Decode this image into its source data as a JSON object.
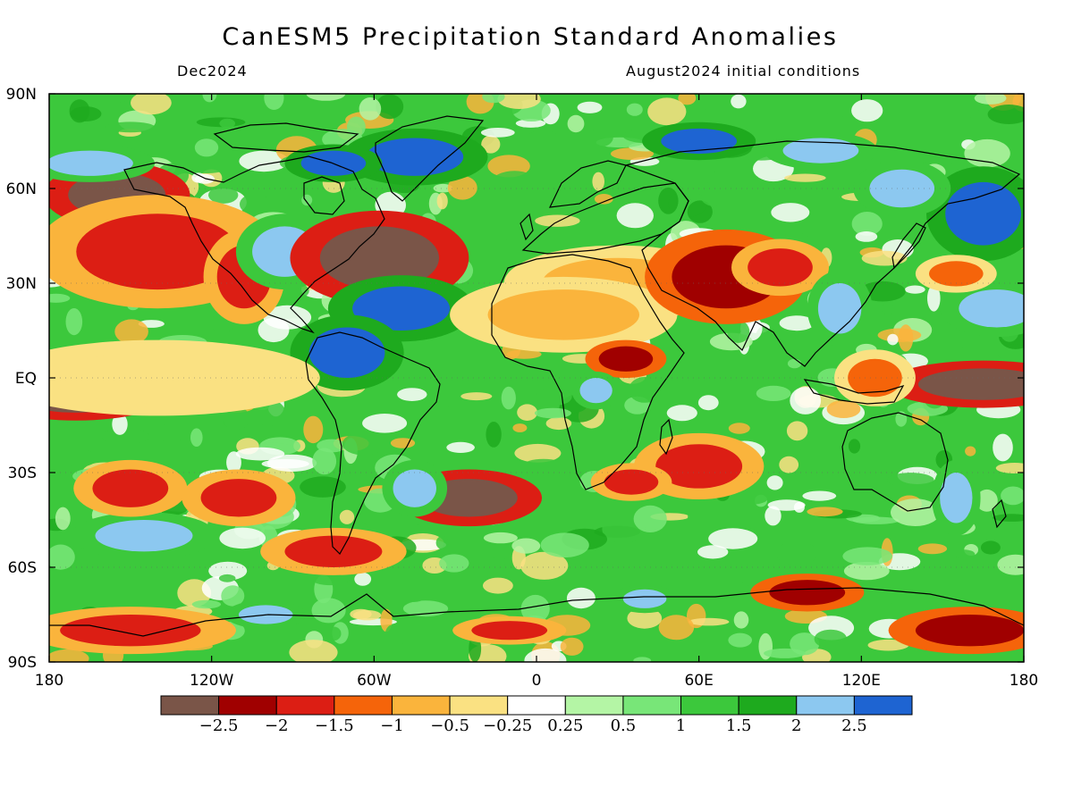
{
  "title": "CanESM5 Precipitation Standard Anomalies",
  "valid_month": "Dec2024",
  "initial_conditions": "August2024 initial conditions",
  "lat_labels": [
    {
      "text": "90N",
      "lat": 90
    },
    {
      "text": "60N",
      "lat": 60
    },
    {
      "text": "30N",
      "lat": 30
    },
    {
      "text": "EQ",
      "lat": 0
    },
    {
      "text": "30S",
      "lat": -30
    },
    {
      "text": "60S",
      "lat": -60
    },
    {
      "text": "90S",
      "lat": -90
    }
  ],
  "lon_labels": [
    {
      "text": "180",
      "lon": -180
    },
    {
      "text": "120W",
      "lon": -120
    },
    {
      "text": "60W",
      "lon": -60
    },
    {
      "text": "0",
      "lon": 0
    },
    {
      "text": "60E",
      "lon": 60
    },
    {
      "text": "120E",
      "lon": 120
    },
    {
      "text": "180",
      "lon": 180
    }
  ],
  "colorbar": {
    "colors": [
      "#7a5548",
      "#a00000",
      "#dc1e14",
      "#f5640a",
      "#fab43c",
      "#fae182",
      "#ffffff",
      "#b4f5a5",
      "#78e678",
      "#3cc83c",
      "#1eaa1e",
      "#8cc8f0",
      "#1e64d2"
    ],
    "labels": [
      "−2.5",
      "−2",
      "−1.5",
      "−1",
      "−0.5",
      "−0.25",
      "0.25",
      "0.5",
      "1",
      "1.5",
      "2",
      "2.5"
    ]
  },
  "anomaly_features": [
    {
      "lon": -155,
      "lat": 58,
      "rx": 18,
      "ry": 7,
      "value": -2.7
    },
    {
      "lon": -140,
      "lat": 40,
      "rx": 30,
      "ry": 12,
      "value": -1.6
    },
    {
      "lon": -108,
      "lat": 32,
      "rx": 10,
      "ry": 10,
      "value": -1.8
    },
    {
      "lon": -93,
      "lat": 40,
      "rx": 12,
      "ry": 8,
      "value": 2.1
    },
    {
      "lon": -58,
      "lat": 38,
      "rx": 22,
      "ry": 10,
      "value": -2.6
    },
    {
      "lon": -50,
      "lat": 22,
      "rx": 18,
      "ry": 7,
      "value": 2.7
    },
    {
      "lon": -70,
      "lat": 8,
      "rx": 14,
      "ry": 8,
      "value": 2.6
    },
    {
      "lon": -45,
      "lat": 70,
      "rx": 18,
      "ry": 6,
      "value": 2.6
    },
    {
      "lon": -75,
      "lat": 68,
      "rx": 12,
      "ry": 4,
      "value": 2.6
    },
    {
      "lon": -165,
      "lat": 68,
      "rx": 16,
      "ry": 4,
      "value": 2.3
    },
    {
      "lon": -170,
      "lat": -6,
      "rx": 22,
      "ry": 5,
      "value": -2.7
    },
    {
      "lon": -140,
      "lat": 0,
      "rx": 40,
      "ry": 8,
      "value": -0.4
    },
    {
      "lon": -145,
      "lat": -50,
      "rx": 18,
      "ry": 5,
      "value": 2.3
    },
    {
      "lon": -150,
      "lat": -35,
      "rx": 14,
      "ry": 6,
      "value": -1.7
    },
    {
      "lon": -110,
      "lat": -38,
      "rx": 14,
      "ry": 6,
      "value": -1.8
    },
    {
      "lon": -25,
      "lat": -38,
      "rx": 18,
      "ry": 6,
      "value": -2.6
    },
    {
      "lon": -45,
      "lat": -35,
      "rx": 8,
      "ry": 6,
      "value": 2.3
    },
    {
      "lon": -75,
      "lat": -55,
      "rx": 18,
      "ry": 5,
      "value": -1.6
    },
    {
      "lon": 30,
      "lat": 30,
      "rx": 28,
      "ry": 8,
      "value": -0.9
    },
    {
      "lon": 10,
      "lat": 20,
      "rx": 28,
      "ry": 8,
      "value": -0.6
    },
    {
      "lon": 33,
      "lat": 6,
      "rx": 10,
      "ry": 4,
      "value": -2.1
    },
    {
      "lon": 22,
      "lat": -4,
      "rx": 6,
      "ry": 4,
      "value": 2.4
    },
    {
      "lon": 70,
      "lat": 32,
      "rx": 20,
      "ry": 10,
      "value": -2.2
    },
    {
      "lon": 90,
      "lat": 35,
      "rx": 12,
      "ry": 6,
      "value": -1.6
    },
    {
      "lon": 60,
      "lat": -28,
      "rx": 16,
      "ry": 7,
      "value": -2.0
    },
    {
      "lon": 35,
      "lat": -33,
      "rx": 10,
      "ry": 4,
      "value": -1.7
    },
    {
      "lon": 100,
      "lat": -68,
      "rx": 14,
      "ry": 4,
      "value": -2.5
    },
    {
      "lon": 40,
      "lat": -70,
      "rx": 8,
      "ry": 3,
      "value": 2.4
    },
    {
      "lon": 165,
      "lat": -2,
      "rx": 24,
      "ry": 5,
      "value": -2.6
    },
    {
      "lon": 170,
      "lat": 22,
      "rx": 14,
      "ry": 6,
      "value": 2.4
    },
    {
      "lon": 165,
      "lat": 52,
      "rx": 14,
      "ry": 10,
      "value": 2.6
    },
    {
      "lon": 135,
      "lat": 60,
      "rx": 12,
      "ry": 6,
      "value": 2.3
    },
    {
      "lon": 155,
      "lat": 33,
      "rx": 10,
      "ry": 4,
      "value": -1.4
    },
    {
      "lon": 160,
      "lat": -80,
      "rx": 20,
      "ry": 5,
      "value": -2.3
    },
    {
      "lon": -150,
      "lat": -80,
      "rx": 26,
      "ry": 5,
      "value": -2.0
    },
    {
      "lon": -10,
      "lat": -80,
      "rx": 14,
      "ry": 3,
      "value": -1.7
    },
    {
      "lon": -100,
      "lat": -75,
      "rx": 10,
      "ry": 3,
      "value": 2.3
    },
    {
      "lon": 155,
      "lat": -38,
      "rx": 6,
      "ry": 8,
      "value": 2.4
    },
    {
      "lon": 112,
      "lat": 22,
      "rx": 8,
      "ry": 8,
      "value": 2.4
    },
    {
      "lon": 60,
      "lat": 75,
      "rx": 14,
      "ry": 4,
      "value": 2.5
    },
    {
      "lon": 105,
      "lat": 72,
      "rx": 14,
      "ry": 4,
      "value": 2.3
    },
    {
      "lon": 125,
      "lat": 0,
      "rx": 10,
      "ry": 6,
      "value": -1.3
    }
  ]
}
